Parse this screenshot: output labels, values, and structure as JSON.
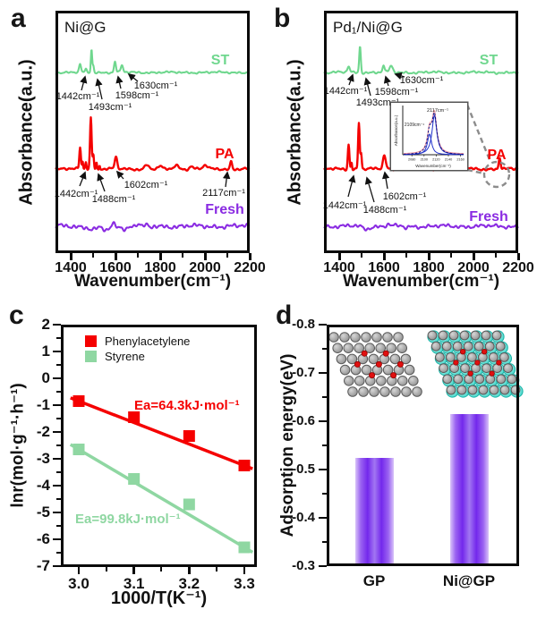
{
  "panels": {
    "a": {
      "label": "a",
      "title": "Ni@G",
      "xlabel": "Wavenumber(cm⁻¹)",
      "ylabel": "Absorbance(a.u.)",
      "x_ticks": [
        "1400",
        "1600",
        "1800",
        "2000",
        "2200"
      ],
      "curve_labels": {
        "st": "ST",
        "pa": "PA",
        "fresh": "Fresh"
      },
      "ann_st": [
        "1442cm⁻¹",
        "1493cm⁻¹",
        "1598cm⁻¹",
        "1630cm⁻¹"
      ],
      "ann_pa": [
        "1442cm⁻¹",
        "1488cm⁻¹",
        "1602cm⁻¹",
        "2117cm⁻¹"
      ]
    },
    "b": {
      "label": "b",
      "title": "Pd₁/Ni@G",
      "xlabel": "Wavenumber(cm⁻¹)",
      "ylabel": "Absorbance(a.u.)",
      "x_ticks": [
        "1400",
        "1600",
        "1800",
        "2000",
        "2200"
      ],
      "curve_labels": {
        "st": "ST",
        "pa": "PA",
        "fresh": "Fresh"
      },
      "ann_st": [
        "1442cm⁻¹",
        "1493cm⁻¹",
        "1598cm⁻¹",
        "1630cm⁻¹"
      ],
      "ann_pa": [
        "1442cm⁻¹",
        "1488cm⁻¹",
        "1602cm⁻¹"
      ],
      "inset": {
        "peak_main": "2117cm⁻¹",
        "peak_side": "2109cm⁻¹",
        "xlabel": "Wavenumber(cm⁻¹)",
        "ylabel": "Absorbance(a.u.)",
        "x_ticks": [
          "2080",
          "2100",
          "2120",
          "2140",
          "2160"
        ]
      }
    },
    "c": {
      "label": "c",
      "xlabel": "1000/T(K⁻¹)",
      "ylabel": "lnr(mol·g⁻¹·h⁻¹)",
      "legend": [
        "Phenylacetylene",
        "Styrene"
      ],
      "ea_red": "Ea=64.3kJ·mol⁻¹",
      "ea_green": "Ea=99.8kJ·mol⁻¹",
      "x_ticks": [
        "3.0",
        "3.1",
        "3.2",
        "3.3"
      ],
      "y_ticks": [
        "2",
        "1",
        "0",
        "-1",
        "-2",
        "-3",
        "-4",
        "-5",
        "-6",
        "-7"
      ]
    },
    "d": {
      "label": "d",
      "ylabel": "Adsorption energy(eV)",
      "y_ticks": [
        "-0.8",
        "-0.7",
        "-0.6",
        "-0.5",
        "-0.4",
        "-0.3"
      ],
      "categories": [
        "GP",
        "Ni@GP"
      ]
    }
  },
  "chart_data": [
    {
      "type": "line",
      "panel": "a",
      "title": "Ni@G",
      "xlabel": "Wavenumber(cm⁻¹)",
      "ylabel": "Absorbance(a.u.)",
      "xlim": [
        1332,
        2200
      ],
      "x_ticks": [
        1400,
        1600,
        1800,
        2000,
        2200
      ],
      "series": [
        {
          "name": "ST",
          "color": "#6fd78e",
          "labeled_peaks_cm": [
            1442,
            1493,
            1598,
            1630
          ],
          "peaks": [
            [
              1442,
              9,
              6
            ],
            [
              1468,
              3,
              5
            ],
            [
              1493,
              26,
              4
            ],
            [
              1501,
              8,
              4
            ],
            [
              1598,
              12,
              6
            ],
            [
              1629,
              8,
              7
            ]
          ]
        },
        {
          "name": "PA",
          "color": "#f40000",
          "labeled_peaks_cm": [
            1442,
            1488,
            1602,
            2117
          ],
          "peaks": [
            [
              1442,
              24,
              5
            ],
            [
              1453,
              9,
              3
            ],
            [
              1468,
              9,
              4
            ],
            [
              1490,
              58,
              5
            ],
            [
              1501,
              17,
              4
            ],
            [
              1515,
              7,
              3
            ],
            [
              1529,
              5,
              3
            ],
            [
              1602,
              13,
              8
            ],
            [
              1740,
              5,
              12
            ],
            [
              1800,
              3,
              10
            ],
            [
              1872,
              4,
              16
            ],
            [
              1940,
              3,
              12
            ],
            [
              2002,
              4,
              14
            ],
            [
              2117,
              9,
              6
            ]
          ]
        },
        {
          "name": "Fresh",
          "color": "#8a2be2",
          "labeled_peaks_cm": [],
          "peaks": [
            [
              1500,
              -4,
              25
            ],
            [
              1560,
              -5,
              22
            ],
            [
              1590,
              3,
              10
            ],
            [
              1645,
              -3,
              14
            ],
            [
              1700,
              3,
              12
            ],
            [
              1760,
              -2,
              12
            ]
          ]
        }
      ]
    },
    {
      "type": "line",
      "panel": "b",
      "title": "Pd₁/Ni@G",
      "xlabel": "Wavenumber(cm⁻¹)",
      "ylabel": "Absorbance(a.u.)",
      "xlim": [
        1332,
        2200
      ],
      "x_ticks": [
        1400,
        1600,
        1800,
        2000,
        2200
      ],
      "series": [
        {
          "name": "ST",
          "color": "#6fd78e",
          "labeled_peaks_cm": [
            1442,
            1493,
            1598,
            1630
          ],
          "peaks": [
            [
              1442,
              7,
              7
            ],
            [
              1493,
              30,
              5
            ],
            [
              1598,
              8,
              6
            ],
            [
              1632,
              7,
              10
            ]
          ]
        },
        {
          "name": "PA",
          "color": "#f40000",
          "labeled_peaks_cm": [
            1442,
            1488,
            1602,
            2117
          ],
          "peaks": [
            [
              1442,
              28,
              5
            ],
            [
              1455,
              8,
              3
            ],
            [
              1488,
              52,
              5
            ],
            [
              1498,
              18,
              4
            ],
            [
              1602,
              15,
              9
            ],
            [
              1745,
              4,
              12
            ],
            [
              1870,
              3,
              14
            ],
            [
              1960,
              3,
              12
            ],
            [
              2117,
              13,
              6
            ]
          ]
        },
        {
          "name": "Fresh",
          "color": "#8a2be2",
          "labeled_peaks_cm": [],
          "peaks": [
            [
              1520,
              -3,
              20
            ],
            [
              1620,
              2,
              12
            ],
            [
              1700,
              -2,
              12
            ]
          ]
        }
      ],
      "inset": {
        "labeled_peaks_cm": [
          2117,
          2109
        ],
        "x_ticks": [
          2080,
          2100,
          2120,
          2140,
          2160
        ],
        "components": [
          [
            2117,
            44,
            3.2
          ],
          [
            2109,
            23,
            2.8
          ]
        ]
      }
    },
    {
      "type": "scatter",
      "panel": "c",
      "x": [
        3.0,
        3.1,
        3.2,
        3.3
      ],
      "series": [
        {
          "name": "Phenylacetylene",
          "color": "#f50000",
          "values": [
            -0.85,
            -1.45,
            -2.15,
            -3.25
          ],
          "Ea_kJ_mol": 64.3
        },
        {
          "name": "Styrene",
          "color": "#8fd7a2",
          "values": [
            -2.65,
            -3.75,
            -4.7,
            -6.3
          ],
          "Ea_kJ_mol": 99.8
        }
      ],
      "xlabel": "1000/T(K⁻¹)",
      "ylabel": "lnr(mol·g⁻¹·h⁻¹)",
      "xlim": [
        2.97,
        3.33
      ],
      "ylim": [
        -7,
        2
      ],
      "x_ticks": [
        3.0,
        3.1,
        3.2,
        3.3
      ],
      "y_ticks": [
        2,
        1,
        0,
        -1,
        -2,
        -3,
        -4,
        -5,
        -6,
        -7
      ],
      "legend_position": "top-left",
      "grid": false
    },
    {
      "type": "bar",
      "panel": "d",
      "categories": [
        "GP",
        "Ni@GP"
      ],
      "values": [
        -0.525,
        -0.615
      ],
      "ylabel": "Adsorption energy(eV)",
      "ylim": [
        -0.3,
        -0.8
      ],
      "y_ticks": [
        -0.8,
        -0.7,
        -0.6,
        -0.5,
        -0.4,
        -0.3
      ],
      "bar_color": "#7a36ee",
      "grid": false
    }
  ]
}
